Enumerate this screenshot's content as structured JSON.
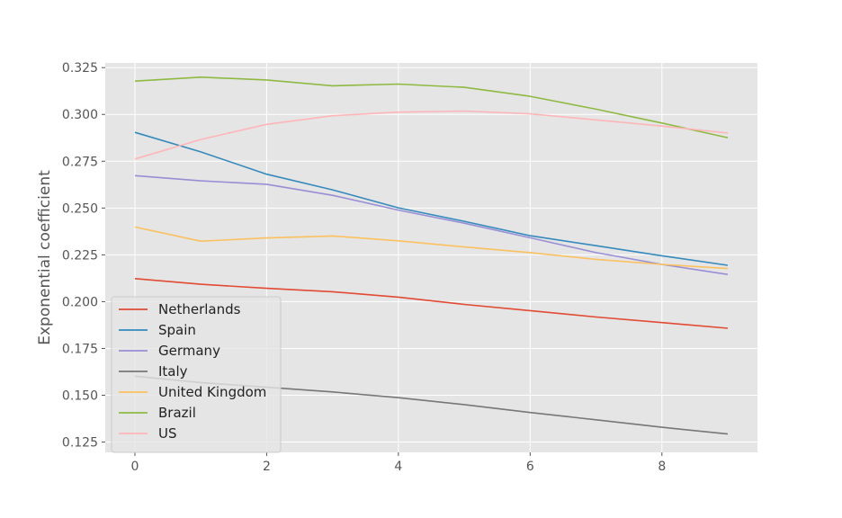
{
  "chart_data": {
    "type": "line",
    "title": "",
    "xlabel": "",
    "ylabel": "Exponential coefficient",
    "xlim": [
      -0.45,
      9.45
    ],
    "ylim": [
      0.1195,
      0.3275
    ],
    "xticks": [
      "0",
      "2",
      "4",
      "6",
      "8"
    ],
    "yticks": [
      "0.125",
      "0.150",
      "0.175",
      "0.200",
      "0.225",
      "0.250",
      "0.275",
      "0.300",
      "0.325"
    ],
    "grid": true,
    "legend_position": "lower-left",
    "x": [
      0,
      1,
      2,
      3,
      4,
      5,
      6,
      7,
      8,
      9
    ],
    "series": [
      {
        "name": "Netherlands",
        "color": "#E24A33",
        "values": [
          0.2123,
          0.2093,
          0.2071,
          0.2053,
          0.2024,
          0.1985,
          0.1952,
          0.1918,
          0.1888,
          0.1858
        ]
      },
      {
        "name": "Spain",
        "color": "#348ABD",
        "values": [
          0.2904,
          0.28,
          0.2681,
          0.2597,
          0.2501,
          0.2429,
          0.2352,
          0.2299,
          0.2245,
          0.2194
        ]
      },
      {
        "name": "Germany",
        "color": "#988ED5",
        "values": [
          0.2673,
          0.2645,
          0.2627,
          0.2568,
          0.2489,
          0.2419,
          0.2341,
          0.2262,
          0.2199,
          0.2145
        ]
      },
      {
        "name": "Italy",
        "color": "#777777",
        "values": [
          0.1602,
          0.1568,
          0.1543,
          0.1518,
          0.1487,
          0.145,
          0.1408,
          0.1369,
          0.1329,
          0.1293
        ]
      },
      {
        "name": "United Kingdom",
        "color": "#FBC15E",
        "values": [
          0.2399,
          0.2323,
          0.234,
          0.2351,
          0.2325,
          0.2292,
          0.2262,
          0.2226,
          0.2199,
          0.2177
        ]
      },
      {
        "name": "Brazil",
        "color": "#8EBA42",
        "values": [
          0.3178,
          0.3199,
          0.3184,
          0.3153,
          0.3162,
          0.3145,
          0.3097,
          0.3028,
          0.2954,
          0.2876
        ]
      },
      {
        "name": "US",
        "color": "#FFB5B8",
        "values": [
          0.2762,
          0.2866,
          0.2947,
          0.2993,
          0.3012,
          0.3018,
          0.3003,
          0.2971,
          0.2938,
          0.2901
        ]
      }
    ]
  }
}
